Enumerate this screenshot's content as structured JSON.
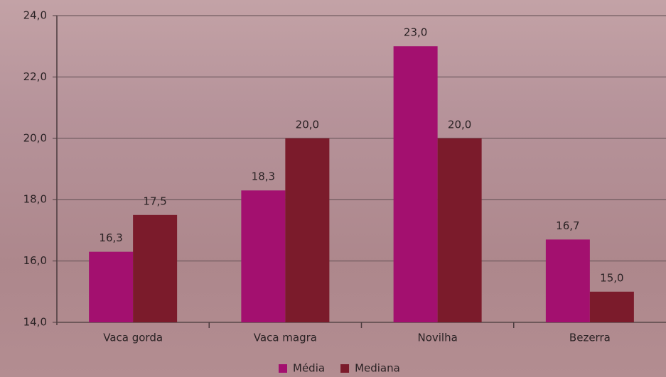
{
  "chart_data": {
    "type": "bar",
    "categories": [
      "Vaca gorda",
      "Vaca magra",
      "Novilha",
      "Bezerra"
    ],
    "series": [
      {
        "name": "Média",
        "color": "#a3106f",
        "values": [
          16.3,
          18.3,
          23.0,
          16.7
        ],
        "value_labels": [
          "16,3",
          "18,3",
          "23,0",
          "16,7"
        ]
      },
      {
        "name": "Mediana",
        "color": "#7b1b2b",
        "values": [
          17.5,
          20.0,
          20.0,
          15.0
        ],
        "value_labels": [
          "17,5",
          "20,0",
          "20,0",
          "15,0"
        ]
      }
    ],
    "ylim": [
      14,
      24
    ],
    "yticks": [
      {
        "value": 14,
        "label": "14,0"
      },
      {
        "value": 16,
        "label": "16,0"
      },
      {
        "value": 18,
        "label": "18,0"
      },
      {
        "value": 20,
        "label": "20,0"
      },
      {
        "value": 22,
        "label": "22,0"
      },
      {
        "value": 24,
        "label": "24,0"
      }
    ],
    "grid": true,
    "legend": "bottom"
  }
}
